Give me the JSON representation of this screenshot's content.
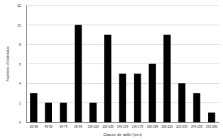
{
  "chart_data": {
    "type": "bar",
    "x_label": "Classe de taille (mm)",
    "y_label": "Nombre d'individus",
    "categories": [
      "20-39",
      "40-59",
      "60-79",
      "80-99",
      "100-119",
      "120-139",
      "140-159",
      "160-179",
      "180-199",
      "200-219",
      "220-239",
      "240-259",
      "260-280"
    ],
    "values": [
      3,
      2,
      2,
      10,
      2,
      9,
      5,
      5,
      6,
      9,
      4,
      3,
      1
    ],
    "color": "#000000",
    "ylim": [
      0,
      12
    ],
    "yticks": [
      0,
      2,
      4,
      6,
      8,
      10,
      12
    ],
    "grid": true
  }
}
